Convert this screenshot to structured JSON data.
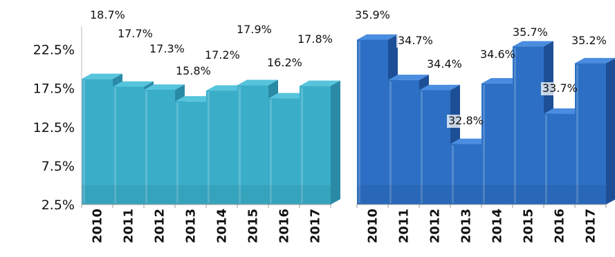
{
  "chart_data": [
    {
      "type": "bar",
      "style": "3d-stepped",
      "color": "#3aaec9",
      "color_dark": "#2a8aa6",
      "color_top": "#56c4dc",
      "categories": [
        "2010",
        "2011",
        "2012",
        "2013",
        "2014",
        "2015",
        "2016",
        "2017"
      ],
      "values": [
        18.7,
        17.7,
        17.3,
        15.8,
        17.2,
        17.9,
        16.2,
        17.8
      ],
      "value_labels": [
        "18.7%",
        "17.7%",
        "17.3%",
        "15.8%",
        "17.2%",
        "17.9%",
        "16.2%",
        "17.8%"
      ],
      "yticks": [
        "22.5%",
        "17.5%",
        "12.5%",
        "7.5%",
        "2.5%"
      ],
      "ytick_values": [
        22.5,
        17.5,
        12.5,
        7.5,
        2.5
      ],
      "ylim": [
        2.5,
        25.5
      ],
      "grid": false
    },
    {
      "type": "bar",
      "style": "3d-stepped",
      "color": "#2c6fc4",
      "color_dark": "#1d4f96",
      "color_top": "#4a8de0",
      "categories": [
        "2010",
        "2011",
        "2012",
        "2013",
        "2014",
        "2015",
        "2016",
        "2017"
      ],
      "values": [
        35.9,
        34.7,
        34.4,
        32.8,
        34.6,
        35.7,
        33.7,
        35.2
      ],
      "value_labels": [
        "35.9%",
        "34.7%",
        "34.4%",
        "32.8%",
        "34.6%",
        "35.7%",
        "33.7%",
        "35.2%"
      ],
      "ylim": [
        31.0,
        36.3
      ],
      "grid": false
    }
  ]
}
